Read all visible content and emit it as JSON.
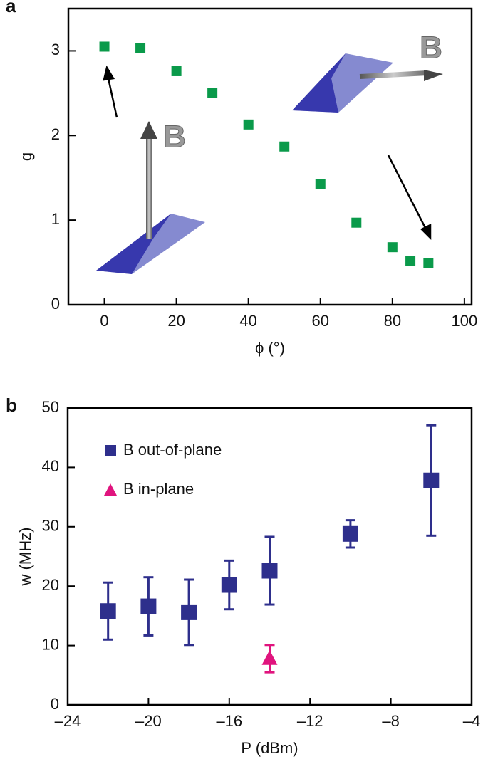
{
  "chart_data": [
    {
      "type": "scatter",
      "panel_label": "a",
      "xlabel": "ϕ (°)",
      "ylabel": "g",
      "annotations": [
        "B",
        "B"
      ],
      "xlim": [
        -10,
        102
      ],
      "ylim": [
        0,
        3.5
      ],
      "xticks": [
        0,
        20,
        40,
        60,
        80,
        100
      ],
      "yticks": [
        0,
        1,
        2,
        3
      ],
      "series": [
        {
          "color": "#0a9a4a",
          "marker": "square",
          "x": [
            0,
            10,
            20,
            30,
            40,
            50,
            60,
            70,
            80,
            85,
            90
          ],
          "values": [
            3.05,
            3.03,
            2.76,
            2.5,
            2.13,
            1.87,
            1.43,
            0.97,
            0.68,
            0.52,
            0.49
          ]
        }
      ]
    },
    {
      "type": "scatter",
      "panel_label": "b",
      "xlabel": "P (dBm)",
      "ylabel": "w (MHz)",
      "xlim": [
        -24,
        -4
      ],
      "ylim": [
        0,
        50
      ],
      "xticks": [
        {
          "value": -24,
          "label": "–24"
        },
        {
          "value": -20,
          "label": "–20"
        },
        {
          "value": -16,
          "label": "–16"
        },
        {
          "value": -12,
          "label": "–12"
        },
        {
          "value": -8,
          "label": "–8"
        },
        {
          "value": -4,
          "label": "–4"
        }
      ],
      "yticks": [
        0,
        10,
        20,
        30,
        40,
        50
      ],
      "legend": "upper left",
      "series": [
        {
          "name": "B out-of-plane",
          "color": "#2e2f8c",
          "marker": "square",
          "x": [
            -22,
            -20,
            -18,
            -16,
            -14,
            -10,
            -6
          ],
          "values": [
            15.8,
            16.6,
            15.6,
            20.2,
            22.6,
            28.8,
            37.8
          ],
          "errors": [
            4.8,
            4.9,
            5.5,
            4.1,
            5.7,
            2.3,
            9.3
          ]
        },
        {
          "name": "B in-plane",
          "color": "#e0147e",
          "marker": "triangle",
          "x": [
            -14
          ],
          "values": [
            7.8
          ],
          "errors": [
            2.3
          ]
        }
      ]
    }
  ]
}
